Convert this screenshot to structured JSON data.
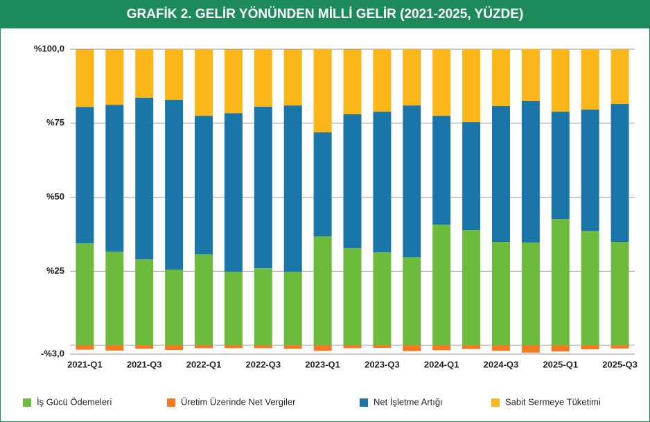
{
  "chart_data": {
    "type": "stacked_bar",
    "title": "GRAFİK 2. GELİR YÖNÜNDEN MİLLİ GELİR (2021-2025, YÜZDE)",
    "categories": [
      "2021-Q1",
      null,
      "2021-Q3",
      null,
      "2022-Q1",
      null,
      "2022-Q3",
      null,
      "2023-Q1",
      null,
      "2023-Q3",
      null,
      "2024-Q1",
      null,
      "2024-Q3",
      null,
      "2025-Q1",
      null,
      "2025-Q3"
    ],
    "series": [
      {
        "name": "İş Gücü Ödemeleri",
        "color": "#6cbb3c",
        "values": [
          34.4,
          31.6,
          29.0,
          25.5,
          30.7,
          24.8,
          26.0,
          24.8,
          36.8,
          32.8,
          31.4,
          29.7,
          40.7,
          38.9,
          34.9,
          34.7,
          42.6,
          38.6,
          34.9
        ]
      },
      {
        "name": "Üretim Üzerinde Net Vergiler",
        "color": "#f47a20",
        "values": [
          -1.5,
          -1.8,
          -1.2,
          -1.6,
          -1.0,
          -1.0,
          -1.0,
          -1.2,
          -1.9,
          -1.0,
          -0.9,
          -2.0,
          -1.7,
          -1.3,
          -1.9,
          -2.5,
          -2.1,
          -1.4,
          -1.1
        ]
      },
      {
        "name": "Net İşletme Artığı",
        "color": "#1a75a8",
        "values": [
          46.1,
          49.6,
          54.6,
          57.4,
          46.8,
          53.6,
          54.6,
          56.2,
          35.1,
          45.2,
          47.5,
          51.3,
          36.8,
          36.5,
          45.9,
          47.8,
          36.3,
          41.0,
          46.6
        ]
      },
      {
        "name": "Sabit Sermeye Tüketimi",
        "color": "#fbb61a",
        "values": [
          19.4,
          18.7,
          16.4,
          17.1,
          22.5,
          21.5,
          19.4,
          18.9,
          28.1,
          21.9,
          21.1,
          19.0,
          22.5,
          24.6,
          19.2,
          17.6,
          21.1,
          20.4,
          18.5
        ]
      }
    ],
    "ylim": [
      -3,
      100
    ],
    "yticks": [
      {
        "value": 100,
        "label": "%100,0"
      },
      {
        "value": 75,
        "label": "%75"
      },
      {
        "value": 50,
        "label": "%50"
      },
      {
        "value": 25,
        "label": "%25"
      },
      {
        "value": -3,
        "label": "-%3,0"
      }
    ],
    "grid": true
  }
}
